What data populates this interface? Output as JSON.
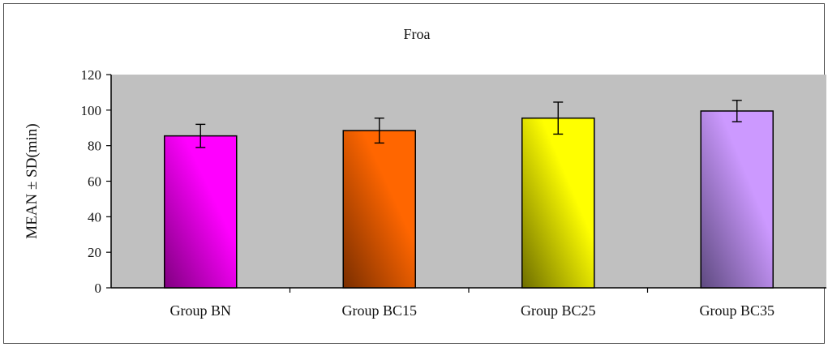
{
  "chart_data": {
    "type": "bar",
    "title": "Froa",
    "xlabel": "",
    "ylabel": "MEAN ± SD(min)",
    "ylim": [
      0,
      120
    ],
    "yticks": [
      0,
      20,
      40,
      60,
      80,
      100,
      120
    ],
    "categories": [
      "Group BN",
      "Group BC15",
      "Group BC25",
      "Group BC35"
    ],
    "values": [
      85.5,
      88.5,
      95.5,
      99.5
    ],
    "error": [
      6.5,
      7,
      9,
      6
    ],
    "colors": [
      "#ff00ff",
      "#ff6600",
      "#ffff00",
      "#cc99ff"
    ],
    "dark_colors": [
      "#800080",
      "#7a2e00",
      "#6e6e00",
      "#5e4a80"
    ],
    "plot_background": "#c0c0c0",
    "grid": false,
    "legend": "none"
  }
}
